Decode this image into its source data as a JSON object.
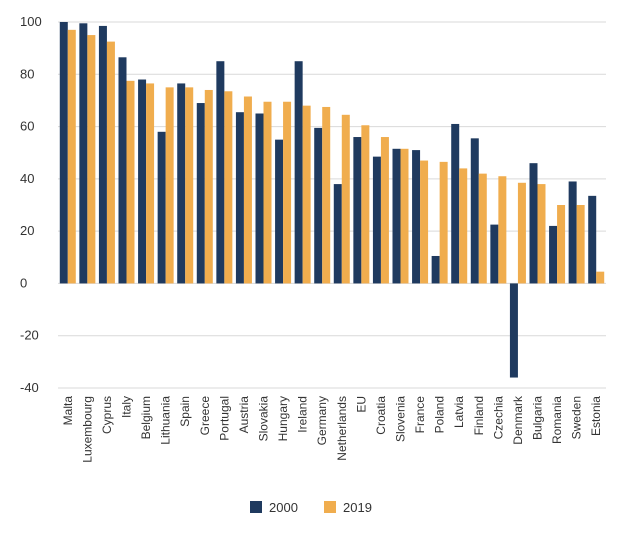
{
  "chart_data": {
    "type": "bar",
    "categories": [
      "Malta",
      "Luxembourg",
      "Cyprus",
      "Italy",
      "Belgium",
      "Lithuania",
      "Spain",
      "Greece",
      "Portugal",
      "Austria",
      "Slovakia",
      "Hungary",
      "Ireland",
      "Germany",
      "Netherlands",
      "EU",
      "Croatia",
      "Slovenia",
      "France",
      "Poland",
      "Latvia",
      "Finland",
      "Czechia",
      "Denmark",
      "Bulgaria",
      "Romania",
      "Sweden",
      "Estonia"
    ],
    "series": [
      {
        "name": "2000",
        "color": "#1f3a5f",
        "values": [
          100,
          99.5,
          98.5,
          86.5,
          78,
          58,
          76.5,
          69,
          85,
          65.5,
          65,
          55,
          85,
          59.5,
          38,
          56,
          48.5,
          51.5,
          51,
          10.5,
          61,
          55.5,
          22.5,
          -36,
          46,
          22,
          39,
          33.5
        ]
      },
      {
        "name": "2019",
        "color": "#f0ad4e",
        "values": [
          97,
          95,
          92.5,
          77.5,
          76.5,
          75,
          75,
          74,
          73.5,
          71.5,
          69.5,
          69.5,
          68,
          67.5,
          64.5,
          60.5,
          56,
          51.5,
          47,
          46.5,
          44,
          42,
          41,
          38.5,
          38,
          30,
          30,
          4.5
        ]
      }
    ],
    "yticks": [
      "100",
      "80",
      "60",
      "40",
      "20",
      "0",
      "-20",
      "-40"
    ],
    "ylim": [
      -40,
      100
    ],
    "grid": true,
    "legend_position": "bottom-center"
  }
}
